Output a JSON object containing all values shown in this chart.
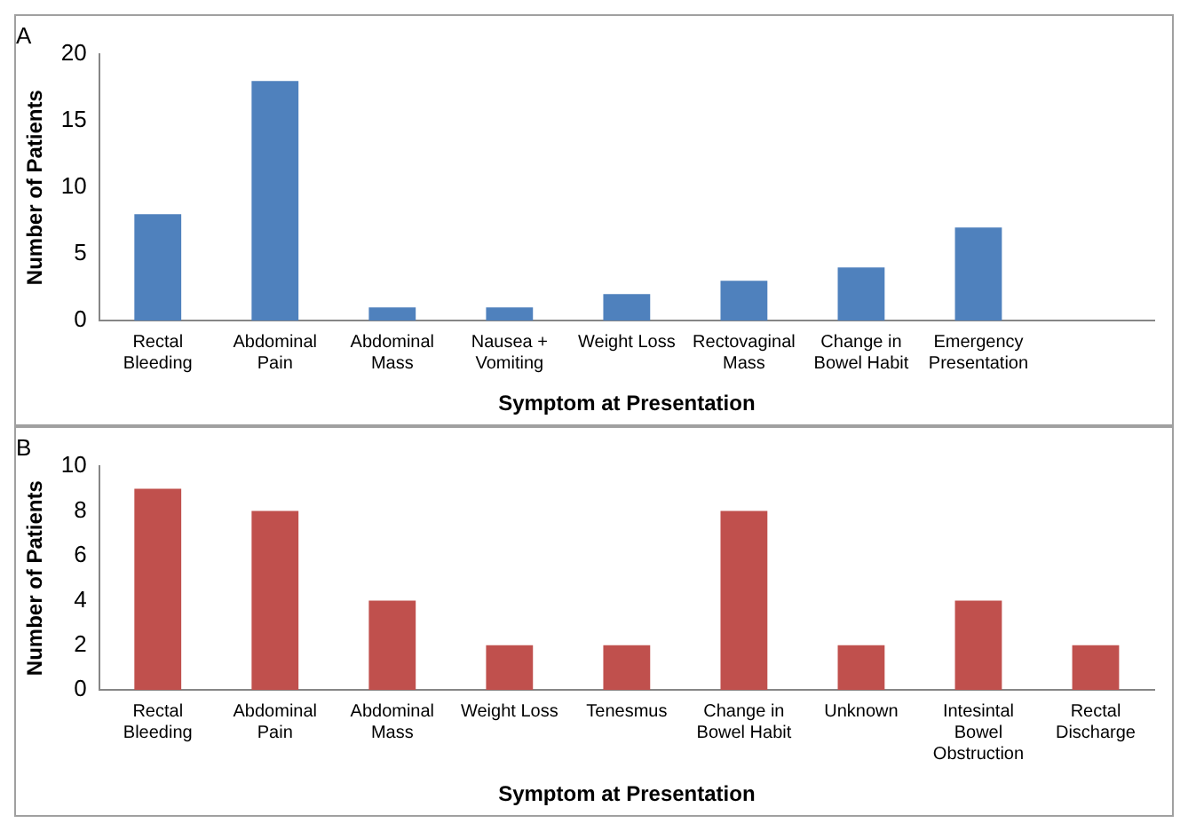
{
  "chart_data": [
    {
      "type": "bar",
      "title": "A",
      "categories": [
        "Rectal Bleeding",
        "Abdominal Pain",
        "Abdominal Mass",
        "Nausea + Vomiting",
        "Weight Loss",
        "Rectovaginal Mass",
        "Change in Bowel Habit",
        "Emergency Presentation",
        null
      ],
      "values": [
        8,
        18,
        1,
        1,
        2,
        3,
        4,
        7,
        null
      ],
      "color": "#4f81bd",
      "ylim": [
        0,
        20
      ],
      "yticks": [
        0,
        5,
        10,
        15,
        20
      ],
      "xlabel": "Symptom at Presentation",
      "ylabel": "Number of Patients",
      "grid": false,
      "legend": false
    },
    {
      "type": "bar",
      "title": "B",
      "categories": [
        "Rectal Bleeding",
        "Abdominal Pain",
        "Abdominal Mass",
        "Weight Loss",
        "Tenesmus",
        "Change in Bowel Habit",
        "Unknown",
        "Intesintal Bowel Obstruction",
        "Rectal Discharge"
      ],
      "values": [
        9,
        8,
        4,
        2,
        2,
        8,
        2,
        4,
        2
      ],
      "color": "#c0504d",
      "ylim": [
        0,
        10
      ],
      "yticks": [
        0,
        2,
        4,
        6,
        8,
        10
      ],
      "xlabel": "Symptom at Presentation",
      "ylabel": "Number of Patients",
      "grid": false,
      "legend": false
    }
  ]
}
